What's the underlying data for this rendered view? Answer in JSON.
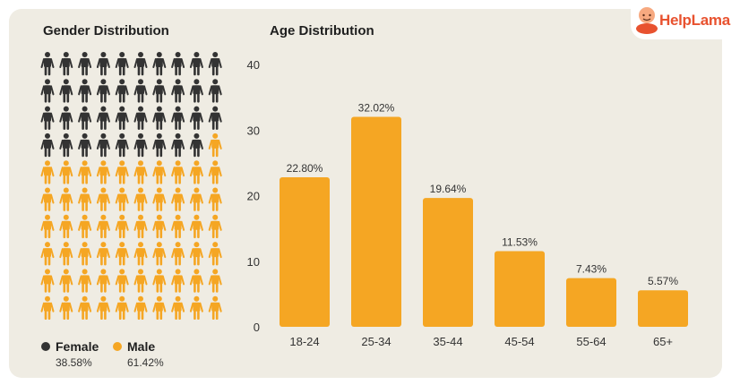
{
  "brand": {
    "name": "HelpLama",
    "accent": "#e8522f"
  },
  "gender": {
    "title": "Gender Distribution",
    "rows": 10,
    "cols": 10,
    "female_count": 39,
    "female_color": "#333333",
    "male_color": "#f5a623",
    "legend": [
      {
        "label": "Female",
        "percent": "38.58%"
      },
      {
        "label": "Male",
        "percent": "61.42%"
      }
    ]
  },
  "chart_data": {
    "type": "bar",
    "title": "Age Distribution",
    "categories": [
      "18-24",
      "25-34",
      "35-44",
      "45-54",
      "55-64",
      "65+"
    ],
    "values": [
      22.8,
      32.02,
      19.64,
      11.53,
      7.43,
      5.57
    ],
    "data_labels": [
      "22.80%",
      "32.02%",
      "19.64%",
      "11.53%",
      "7.43%",
      "5.57%"
    ],
    "ylim": [
      0,
      40
    ],
    "yticks": [
      0,
      10,
      20,
      30,
      40
    ],
    "grid": false,
    "bar_color": "#f5a623"
  }
}
